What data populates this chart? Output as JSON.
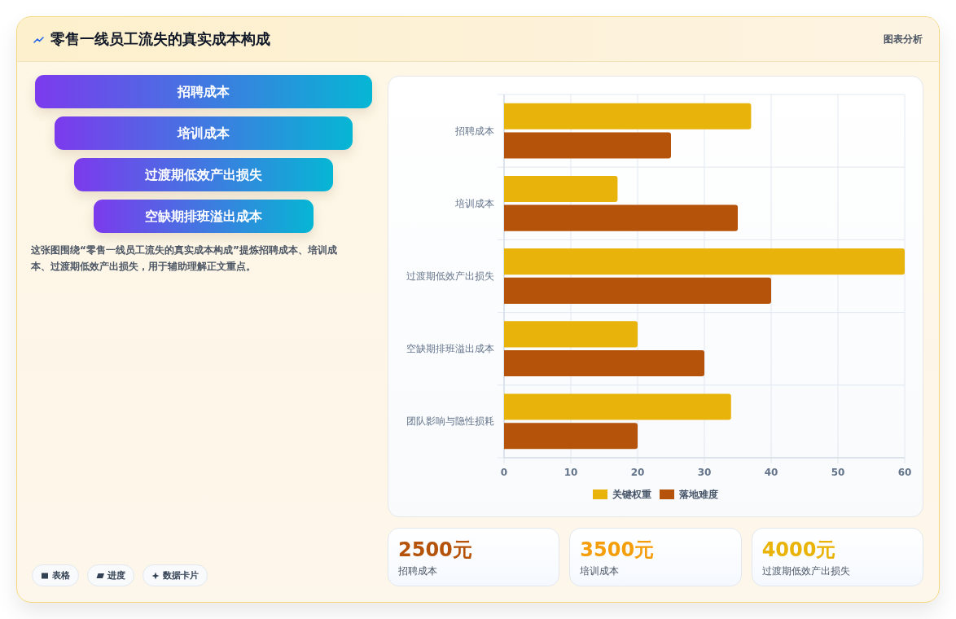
{
  "chart_data": [
    {
      "type": "other",
      "title": "零售一线员工流失的真实成本构成",
      "subtitle": "图表分析",
      "categories": [
        "招聘成本",
        "培训成本",
        "过渡期低效产出损失",
        "空缺期排班溢出成本"
      ],
      "annotations": [
        "这张图围绕“零售一线员工流失的真实成本构成”提炼招聘成本、培训成本、过渡期低效产出损失，用于辅助理解正文重点。",
        "表格",
        "进度",
        "数据卡片"
      ]
    },
    {
      "type": "bar",
      "orientation": "horizontal",
      "categories": [
        "招聘成本",
        "培训成本",
        "过渡期低效产出损失",
        "空缺期排班溢出成本",
        "团队影响与隐性损耗"
      ],
      "series": [
        {
          "name": "关键权重",
          "color": "#e8b30a",
          "values": [
            37,
            17,
            60,
            20,
            34
          ]
        },
        {
          "name": "落地难度",
          "color": "#b45309",
          "values": [
            25,
            35,
            40,
            30,
            20
          ]
        }
      ],
      "xlim": [
        0,
        60
      ],
      "xticks": [
        0,
        10,
        20,
        30,
        40,
        50,
        60
      ],
      "grid": true,
      "legend": "bottom"
    },
    {
      "type": "other",
      "categories": [
        "招聘成本",
        "培训成本",
        "过渡期低效产出损失"
      ],
      "value_labels": [
        "2500元",
        "3500元",
        "4000元"
      ]
    }
  ]
}
